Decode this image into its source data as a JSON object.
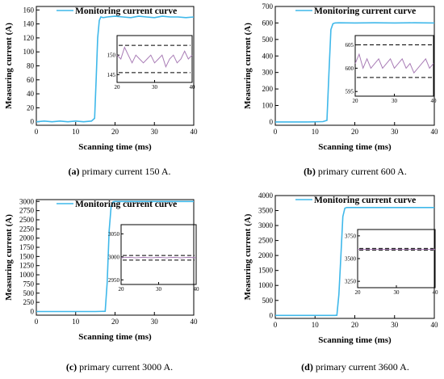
{
  "chart_data": [
    {
      "type": "line",
      "letter": "(a)",
      "caption": "primary current 150 A.",
      "xlabel": "Scanning time (ms)",
      "ylabel": "Measuring current (A)",
      "legend": "Monitoring current curve",
      "xlim": [
        0,
        40
      ],
      "ylim": [
        -5,
        165
      ],
      "xticks": [
        0,
        10,
        20,
        30,
        40
      ],
      "yticks": [
        0,
        20,
        40,
        60,
        80,
        100,
        120,
        140,
        160
      ],
      "series": [
        {
          "x": [
            0,
            2,
            4,
            6,
            8,
            10,
            12,
            14,
            14.8,
            15.2,
            15.6,
            16,
            16.4,
            17,
            18,
            20,
            22,
            24,
            26,
            28,
            30,
            32,
            34,
            36,
            38,
            40
          ],
          "y": [
            0,
            1,
            0,
            1,
            0,
            1,
            0,
            1,
            5,
            60,
            120,
            145,
            150,
            149,
            150,
            151,
            150,
            149,
            151,
            150,
            149,
            151,
            150,
            150,
            149,
            150
          ]
        }
      ],
      "inset": {
        "xlim": [
          20,
          40
        ],
        "ylim": [
          143,
          155
        ],
        "xticks": [
          20,
          30,
          40
        ],
        "yticks": [
          145,
          150
        ],
        "upper": 152.5,
        "lower": 145.5,
        "x": [
          20,
          21,
          22,
          23,
          24,
          25,
          26,
          27,
          28,
          29,
          30,
          31,
          32,
          33,
          34,
          35,
          36,
          37,
          38,
          39,
          40
        ],
        "y": [
          150,
          149,
          152,
          150,
          148,
          150,
          149,
          148,
          149,
          150,
          148,
          149,
          150,
          147,
          149,
          150,
          148,
          149,
          151,
          149,
          150
        ]
      }
    },
    {
      "type": "line",
      "letter": "(b)",
      "caption": "primary current 600 A.",
      "xlabel": "Scanning time (ms)",
      "ylabel": "Measuring current (A)",
      "legend": "Monitoring current curve",
      "xlim": [
        0,
        40
      ],
      "ylim": [
        -20,
        700
      ],
      "xticks": [
        0,
        10,
        20,
        30,
        40
      ],
      "yticks": [
        0,
        100,
        200,
        300,
        400,
        500,
        600,
        700
      ],
      "series": [
        {
          "x": [
            0,
            4,
            8,
            12,
            13,
            13.5,
            14,
            14.5,
            15,
            16,
            20,
            25,
            30,
            35,
            40
          ],
          "y": [
            0,
            0,
            0,
            2,
            10,
            300,
            560,
            595,
            600,
            601,
            600,
            601,
            600,
            601,
            600
          ]
        }
      ],
      "inset": {
        "xlim": [
          20,
          40
        ],
        "ylim": [
          594,
          607
        ],
        "xticks": [
          20,
          30,
          40
        ],
        "yticks": [
          595,
          600,
          605
        ],
        "upper": 605,
        "lower": 598,
        "x": [
          20,
          21,
          22,
          23,
          24,
          25,
          26,
          27,
          28,
          29,
          30,
          31,
          32,
          33,
          34,
          35,
          36,
          37,
          38,
          39,
          40
        ],
        "y": [
          601,
          603,
          600,
          602,
          600,
          601,
          602,
          600,
          601,
          602,
          600,
          601,
          602,
          600,
          601,
          599,
          600,
          601,
          602,
          600,
          601
        ]
      }
    },
    {
      "type": "line",
      "letter": "(c)",
      "caption": "primary current 3000 A.",
      "xlabel": "Scanning time (ms)",
      "ylabel": "Measuring current (A)",
      "legend": "Monitoring current curve",
      "xlim": [
        0,
        40
      ],
      "ylim": [
        -100,
        3050
      ],
      "xticks": [
        0,
        10,
        20,
        30,
        40
      ],
      "yticks": [
        0,
        250,
        500,
        750,
        1000,
        1250,
        1500,
        1750,
        2000,
        2250,
        2500,
        2750,
        3000
      ],
      "series": [
        {
          "x": [
            0,
            5,
            10,
            15,
            17.5,
            18,
            18.5,
            19,
            19.5,
            20,
            25,
            30,
            35,
            40
          ],
          "y": [
            0,
            0,
            0,
            0,
            5,
            800,
            2200,
            2850,
            2990,
            3000,
            3000,
            3000,
            3000,
            3000
          ]
        }
      ],
      "inset": {
        "xlim": [
          20,
          40
        ],
        "ylim": [
          2940,
          3070
        ],
        "xticks": [
          20,
          30,
          40
        ],
        "yticks": [
          2950,
          3000,
          3050
        ],
        "upper": 3003,
        "lower": 2993,
        "x": [
          20,
          22,
          24,
          26,
          28,
          30,
          32,
          34,
          36,
          38,
          40
        ],
        "y": [
          2998,
          2999,
          2998,
          2999,
          2998,
          2999,
          2998,
          2999,
          2998,
          2999,
          2998
        ]
      }
    },
    {
      "type": "line",
      "letter": "(d)",
      "caption": "primary current 3600 A.",
      "xlabel": "Scanning time (ms)",
      "ylabel": "Measuring current (A)",
      "legend": "Monitoring current curve",
      "xlim": [
        0,
        40
      ],
      "ylim": [
        -100,
        4000
      ],
      "xticks": [
        0,
        10,
        20,
        30,
        40
      ],
      "yticks": [
        0,
        500,
        1000,
        1500,
        2000,
        2500,
        3000,
        3500,
        4000
      ],
      "series": [
        {
          "x": [
            0,
            5,
            10,
            15,
            15.5,
            16,
            16.5,
            17,
            17.5,
            18,
            20,
            25,
            30,
            35,
            40
          ],
          "y": [
            0,
            0,
            0,
            0,
            5,
            700,
            2000,
            3300,
            3580,
            3600,
            3600,
            3600,
            3600,
            3600,
            3600
          ]
        }
      ],
      "inset": {
        "xlim": [
          20,
          40
        ],
        "ylim": [
          3180,
          3820
        ],
        "xticks": [
          20,
          30,
          40
        ],
        "yticks": [
          3250,
          3500,
          3750
        ],
        "upper": 3612,
        "lower": 3592,
        "x": [
          20,
          22,
          24,
          26,
          28,
          30,
          32,
          34,
          36,
          38,
          40
        ],
        "y": [
          3601,
          3602,
          3601,
          3602,
          3601,
          3602,
          3601,
          3602,
          3601,
          3602,
          3601
        ]
      }
    }
  ]
}
